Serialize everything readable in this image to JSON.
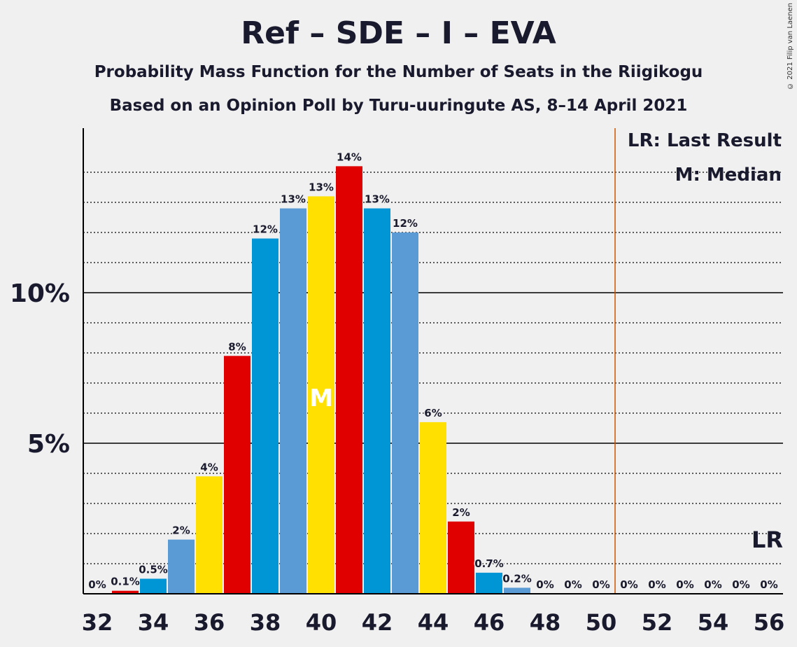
{
  "title": "Ref – SDE – I – EVA",
  "subtitle1": "Probability Mass Function for the Number of Seats in the Riigikogu",
  "subtitle2": "Based on an Opinion Poll by Turu-uuringute AS, 8–14 April 2021",
  "copyright": "© 2021 Filip van Laenen",
  "legend": {
    "last_result": "LR: Last Result",
    "median": "M: Median"
  },
  "chart_data": {
    "type": "bar",
    "categories": [
      32,
      33,
      34,
      35,
      36,
      37,
      38,
      39,
      40,
      41,
      42,
      43,
      44,
      45,
      46,
      47,
      48,
      49,
      50,
      51,
      52,
      53,
      54,
      55,
      56
    ],
    "values": [
      0,
      0.1,
      0.5,
      1.8,
      3.9,
      7.9,
      11.8,
      12.8,
      13.2,
      14.2,
      12.8,
      12.0,
      5.7,
      2.4,
      0.7,
      0.2,
      0,
      0,
      0,
      0,
      0,
      0,
      0,
      0,
      0
    ],
    "labels": [
      "0%",
      "0.1%",
      "0.5%",
      "2%",
      "4%",
      "8%",
      "12%",
      "13%",
      "13%",
      "14%",
      "13%",
      "12%",
      "6%",
      "2%",
      "0.7%",
      "0.2%",
      "0%",
      "0%",
      "0%",
      "0%",
      "0%",
      "0%",
      "0%",
      "0%",
      "0%"
    ],
    "colors": [
      "#0096d6",
      "#e00000",
      "#0096d6",
      "#5b9bd5",
      "#ffe000",
      "#e00000",
      "#0096d6",
      "#5b9bd5",
      "#ffe000",
      "#e00000",
      "#0096d6",
      "#5b9bd5",
      "#ffe000",
      "#e00000",
      "#0096d6",
      "#5b9bd5",
      "#ffe000",
      "#e00000",
      "#0096d6",
      "#5b9bd5",
      "#ffe000",
      "#e00000",
      "#0096d6",
      "#5b9bd5",
      "#ffe000"
    ],
    "x_tick_labels": [
      "32",
      "34",
      "36",
      "38",
      "40",
      "42",
      "44",
      "46",
      "48",
      "50",
      "52",
      "54",
      "56"
    ],
    "y_ticks": [
      {
        "value": 5,
        "label": "5%"
      },
      {
        "value": 10,
        "label": "10%"
      }
    ],
    "ylim": [
      0,
      15.5
    ],
    "median_seat": 40,
    "median_label": "M",
    "majority_line": 50.5,
    "majority_color": "#cc5500",
    "last_result_label": "LR",
    "grid": true
  }
}
